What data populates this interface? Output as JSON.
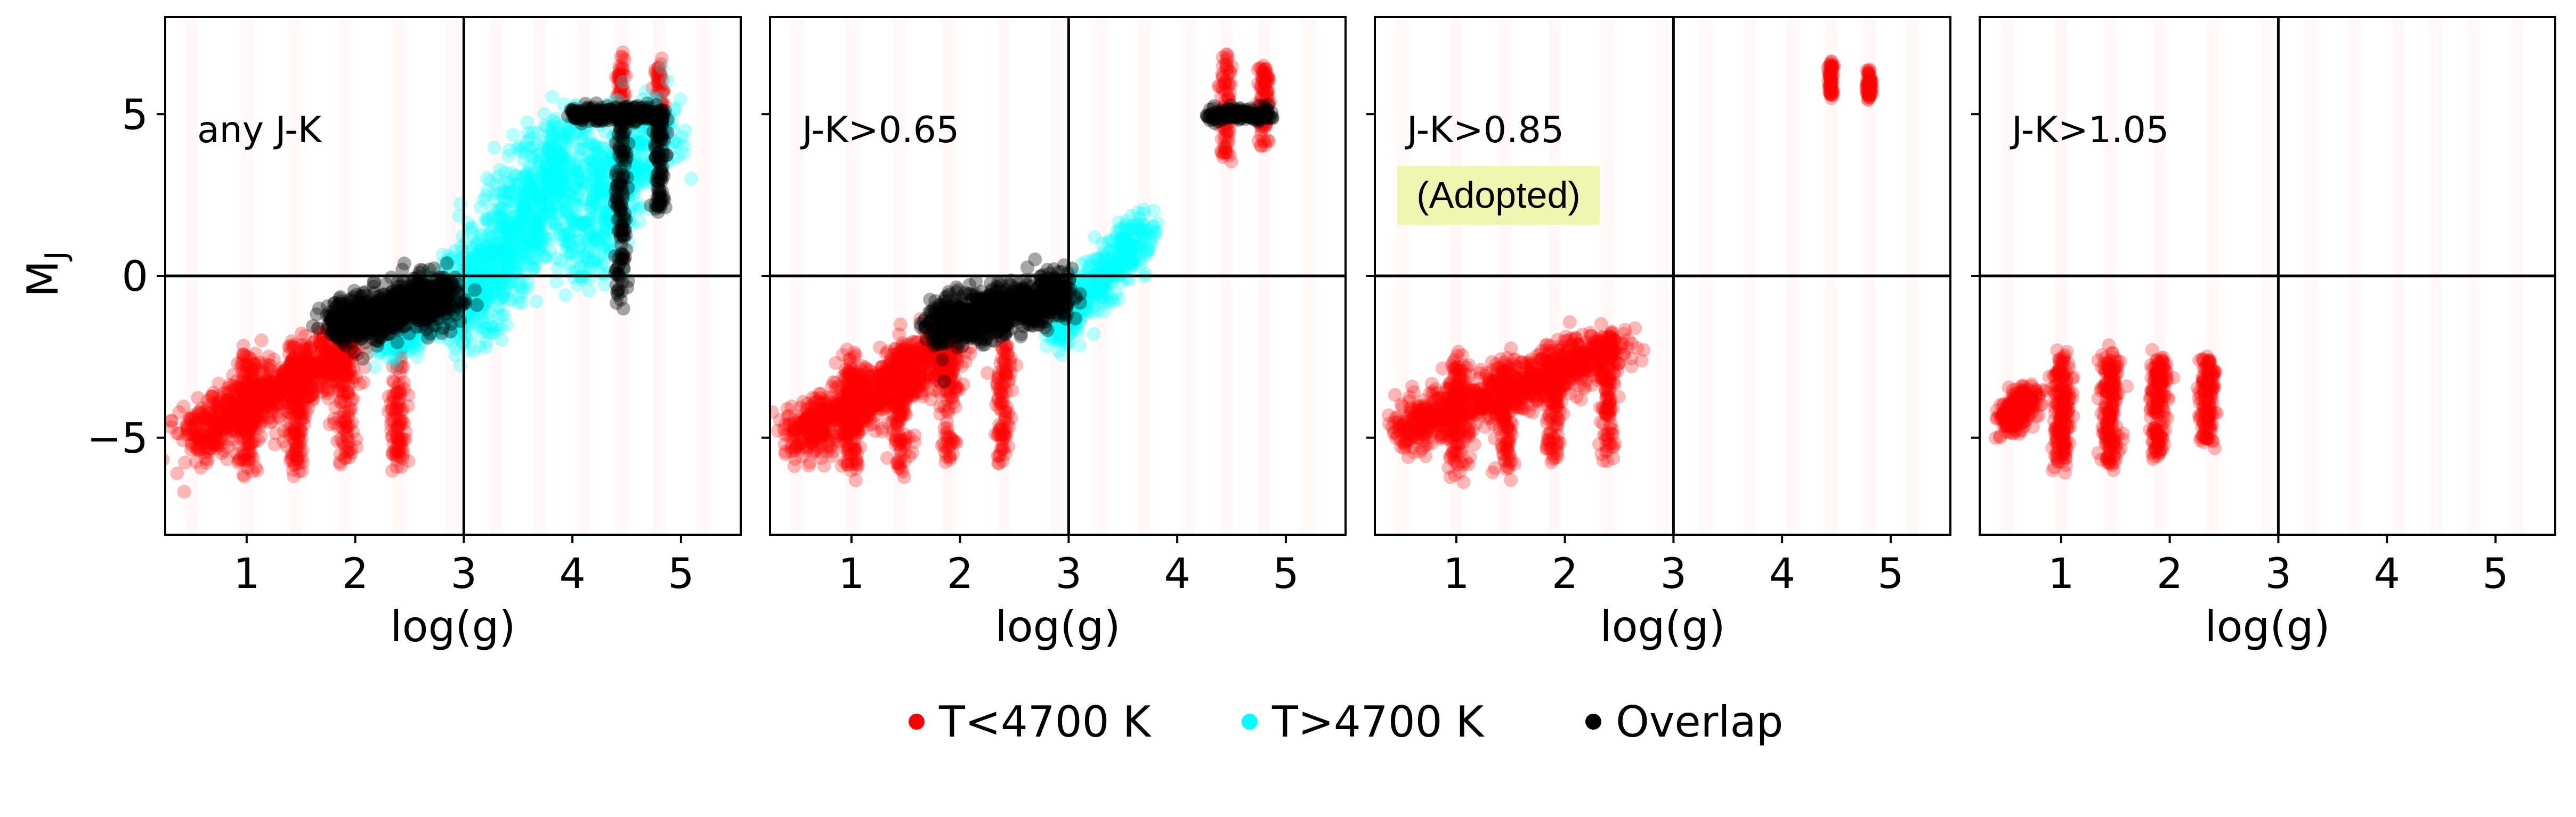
{
  "chart_data": {
    "type": "scatter",
    "ylabel_main": "M",
    "ylabel_sub": "J",
    "xlim": [
      0.25,
      5.55
    ],
    "ylim": [
      -8,
      8
    ],
    "xticks": [
      1,
      2,
      3,
      4,
      5
    ],
    "yticks": [
      -5,
      0,
      5
    ],
    "ytick_labels": [
      "−5",
      "0",
      "5"
    ],
    "reference_lines": {
      "x": 3,
      "y": 0
    },
    "colors": {
      "cool": "#ff0000",
      "hot": "#00ffff",
      "overlap": "#000000"
    },
    "legend": {
      "placement": "bottom-center",
      "entries": [
        {
          "label": "T<4700 K",
          "color": "#ff0000"
        },
        {
          "label": "T>4700 K",
          "color": "#00ffff"
        },
        {
          "label": "Overlap",
          "color": "#000000"
        }
      ]
    },
    "panels": [
      {
        "annotation": "any J-K",
        "xlabel": "log(g)",
        "show_ytick_labels": true,
        "highlight": "",
        "series": {
          "cool": [
            {
              "x": [
                0.5,
                1.9
              ],
              "y": [
                -5.0,
                -2.3
              ],
              "spread": 1.3,
              "n": 900
            },
            {
              "x": [
                1.0,
                1.0
              ],
              "y": [
                -6.0,
                -2.5
              ],
              "spread": 0.5,
              "n": 120
            },
            {
              "x": [
                1.45,
                1.45
              ],
              "y": [
                -6.0,
                -2.2
              ],
              "spread": 0.5,
              "n": 120
            },
            {
              "x": [
                1.9,
                1.9
              ],
              "y": [
                -5.8,
                -2.0
              ],
              "spread": 0.5,
              "n": 100
            },
            {
              "x": [
                2.4,
                2.4
              ],
              "y": [
                -5.8,
                -2.0
              ],
              "spread": 0.4,
              "n": 100
            },
            {
              "x": [
                4.45,
                4.45
              ],
              "y": [
                3.5,
                7.0
              ],
              "spread": 0.3,
              "n": 80
            },
            {
              "x": [
                4.8,
                4.8
              ],
              "y": [
                4.0,
                6.5
              ],
              "spread": 0.3,
              "n": 80
            }
          ],
          "hot": [
            {
              "x": [
                2.9,
                4.0
              ],
              "y": [
                -1.5,
                4.2
              ],
              "spread": 1.9,
              "n": 1000
            },
            {
              "x": [
                4.0,
                4.8
              ],
              "y": [
                0.5,
                5.0
              ],
              "spread": 1.8,
              "n": 500
            },
            {
              "x": [
                2.3,
                3.0
              ],
              "y": [
                -2.2,
                -0.5
              ],
              "spread": 0.9,
              "n": 300
            }
          ],
          "overlap": [
            {
              "x": [
                1.8,
                2.9
              ],
              "y": [
                -1.5,
                -0.6
              ],
              "spread": 1.1,
              "n": 800
            },
            {
              "x": [
                4.0,
                4.85
              ],
              "y": [
                5.0,
                5.0
              ],
              "spread": 0.35,
              "n": 250
            },
            {
              "x": [
                4.45,
                4.45
              ],
              "y": [
                -1.0,
                4.8
              ],
              "spread": 0.3,
              "n": 120
            },
            {
              "x": [
                4.8,
                4.8
              ],
              "y": [
                2.0,
                4.8
              ],
              "spread": 0.3,
              "n": 80
            }
          ]
        }
      },
      {
        "annotation": "J-K>0.65",
        "xlabel": "log(g)",
        "show_ytick_labels": false,
        "highlight": "",
        "series": {
          "cool": [
            {
              "x": [
                0.5,
                1.9
              ],
              "y": [
                -5.0,
                -2.3
              ],
              "spread": 1.3,
              "n": 900
            },
            {
              "x": [
                1.0,
                1.0
              ],
              "y": [
                -6.0,
                -2.5
              ],
              "spread": 0.5,
              "n": 120
            },
            {
              "x": [
                1.45,
                1.45
              ],
              "y": [
                -6.0,
                -2.2
              ],
              "spread": 0.5,
              "n": 120
            },
            {
              "x": [
                1.9,
                1.9
              ],
              "y": [
                -5.8,
                -2.0
              ],
              "spread": 0.5,
              "n": 100
            },
            {
              "x": [
                2.4,
                2.4
              ],
              "y": [
                -5.8,
                -2.0
              ],
              "spread": 0.4,
              "n": 100
            },
            {
              "x": [
                4.45,
                4.45
              ],
              "y": [
                3.5,
                7.0
              ],
              "spread": 0.3,
              "n": 80
            },
            {
              "x": [
                4.8,
                4.8
              ],
              "y": [
                4.0,
                6.5
              ],
              "spread": 0.3,
              "n": 80
            }
          ],
          "hot": [
            {
              "x": [
                3.0,
                3.7
              ],
              "y": [
                -1.2,
                1.5
              ],
              "spread": 1.0,
              "n": 400
            },
            {
              "x": [
                2.9,
                3.1
              ],
              "y": [
                -2.0,
                -0.5
              ],
              "spread": 0.6,
              "n": 120
            }
          ],
          "overlap": [
            {
              "x": [
                1.8,
                2.95
              ],
              "y": [
                -1.5,
                -0.6
              ],
              "spread": 1.1,
              "n": 800
            },
            {
              "x": [
                4.3,
                4.85
              ],
              "y": [
                5.0,
                5.0
              ],
              "spread": 0.3,
              "n": 150
            }
          ]
        }
      },
      {
        "annotation": "J-K>0.85",
        "xlabel": "log(g)",
        "show_ytick_labels": false,
        "highlight": "(Adopted)",
        "series": {
          "cool": [
            {
              "x": [
                0.5,
                2.5
              ],
              "y": [
                -4.8,
                -2.2
              ],
              "spread": 1.1,
              "n": 1000
            },
            {
              "x": [
                1.0,
                1.0
              ],
              "y": [
                -6.0,
                -2.5
              ],
              "spread": 0.5,
              "n": 100
            },
            {
              "x": [
                1.45,
                1.45
              ],
              "y": [
                -6.0,
                -2.5
              ],
              "spread": 0.5,
              "n": 100
            },
            {
              "x": [
                1.9,
                1.9
              ],
              "y": [
                -5.8,
                -2.3
              ],
              "spread": 0.5,
              "n": 100
            },
            {
              "x": [
                2.4,
                2.4
              ],
              "y": [
                -5.6,
                -2.0
              ],
              "spread": 0.4,
              "n": 100
            },
            {
              "x": [
                4.45,
                4.45
              ],
              "y": [
                5.6,
                6.6
              ],
              "spread": 0.15,
              "n": 60
            },
            {
              "x": [
                4.8,
                4.8
              ],
              "y": [
                5.5,
                6.3
              ],
              "spread": 0.15,
              "n": 60
            }
          ],
          "hot": [],
          "overlap": []
        }
      },
      {
        "annotation": "J-K>1.05",
        "xlabel": "log(g)",
        "show_ytick_labels": false,
        "highlight": "",
        "series": {
          "cool": [
            {
              "x": [
                0.5,
                0.7
              ],
              "y": [
                -4.5,
                -3.8
              ],
              "spread": 0.8,
              "n": 250
            },
            {
              "x": [
                1.0,
                1.0
              ],
              "y": [
                -5.8,
                -2.5
              ],
              "spread": 0.45,
              "n": 180
            },
            {
              "x": [
                1.45,
                1.45
              ],
              "y": [
                -5.8,
                -2.5
              ],
              "spread": 0.45,
              "n": 180
            },
            {
              "x": [
                1.9,
                1.9
              ],
              "y": [
                -5.6,
                -2.5
              ],
              "spread": 0.45,
              "n": 160
            },
            {
              "x": [
                2.35,
                2.35
              ],
              "y": [
                -5.3,
                -2.5
              ],
              "spread": 0.4,
              "n": 140
            }
          ],
          "hot": [],
          "overlap": []
        }
      }
    ]
  }
}
